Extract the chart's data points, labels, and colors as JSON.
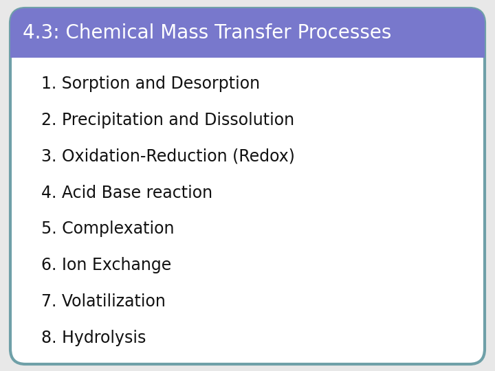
{
  "title": "4.3: Chemical Mass Transfer Processes",
  "title_bg_color": "#7878cc",
  "title_text_color": "#ffffff",
  "title_fontsize": 20,
  "items": [
    "1. Sorption and Desorption",
    "2. Precipitation and Dissolution",
    "3. Oxidation-Reduction (Redox)",
    "4. Acid Base reaction",
    "5. Complexation",
    "6. Ion Exchange",
    "7. Volatilization",
    "8. Hydrolysis"
  ],
  "item_fontsize": 17,
  "item_text_color": "#111111",
  "slide_bg_color": "#ffffff",
  "border_color": "#6fa0a8",
  "content_box_color": "#ffffff",
  "outer_bg_color": "#e8e8e8"
}
